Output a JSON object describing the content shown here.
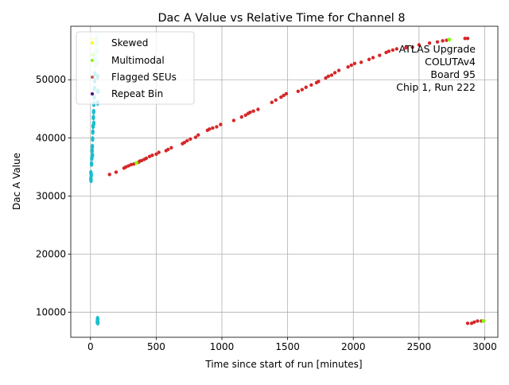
{
  "chart_data": {
    "type": "scatter",
    "title": "Dac A Value vs Relative Time for Channel 8",
    "xlabel": "Time since start of run [minutes]",
    "ylabel": "Dac A Value",
    "xlim": [
      -150,
      3100
    ],
    "ylim": [
      5700,
      59200
    ],
    "xticks": [
      0,
      500,
      1000,
      1500,
      2000,
      2500,
      3000
    ],
    "yticks": [
      10000,
      20000,
      30000,
      40000,
      50000
    ],
    "grid": true,
    "legend_position": "top-left",
    "annotation": [
      "ATLAS Upgrade",
      "COLUTAv4",
      "Board 95",
      "Chip 1, Run 222"
    ],
    "colors": {
      "normal": "#d62728",
      "burst": "#17becf",
      "burst_light": "#aee8f0",
      "skewed": "#ffff00",
      "multimodal": "#7fff00",
      "flagged": "#cd5c5c",
      "repeat": "#4b0082"
    },
    "series": [
      {
        "name": "Skewed",
        "points": [
          [
            15,
            57000
          ]
        ]
      },
      {
        "name": "Multimodal",
        "points": [
          [
            18,
            54300
          ],
          [
            350,
            35700
          ],
          [
            2730,
            56900
          ],
          [
            2990,
            8500
          ]
        ]
      },
      {
        "name": "Flagged SEUs",
        "points": [
          [
            145,
            33700
          ],
          [
            195,
            34100
          ],
          [
            255,
            34800
          ],
          [
            270,
            35000
          ],
          [
            290,
            35200
          ],
          [
            310,
            35400
          ],
          [
            330,
            35500
          ],
          [
            365,
            35800
          ],
          [
            375,
            36000
          ],
          [
            390,
            36100
          ],
          [
            410,
            36300
          ],
          [
            425,
            36500
          ],
          [
            450,
            36800
          ],
          [
            470,
            37000
          ],
          [
            500,
            37200
          ],
          [
            520,
            37500
          ],
          [
            575,
            37800
          ],
          [
            590,
            38000
          ],
          [
            615,
            38300
          ],
          [
            700,
            39000
          ],
          [
            715,
            39200
          ],
          [
            735,
            39500
          ],
          [
            760,
            39800
          ],
          [
            800,
            40100
          ],
          [
            820,
            40500
          ],
          [
            890,
            41300
          ],
          [
            905,
            41500
          ],
          [
            930,
            41700
          ],
          [
            960,
            41900
          ],
          [
            990,
            42300
          ],
          [
            1090,
            43000
          ],
          [
            1150,
            43600
          ],
          [
            1180,
            43900
          ],
          [
            1200,
            44200
          ],
          [
            1215,
            44400
          ],
          [
            1240,
            44600
          ],
          [
            1275,
            44900
          ],
          [
            1380,
            46100
          ],
          [
            1410,
            46500
          ],
          [
            1450,
            47000
          ],
          [
            1470,
            47300
          ],
          [
            1490,
            47600
          ],
          [
            1580,
            48000
          ],
          [
            1610,
            48300
          ],
          [
            1640,
            48700
          ],
          [
            1680,
            49100
          ],
          [
            1720,
            49500
          ],
          [
            1735,
            49700
          ],
          [
            1790,
            50300
          ],
          [
            1810,
            50600
          ],
          [
            1835,
            50800
          ],
          [
            1860,
            51200
          ],
          [
            1890,
            51600
          ],
          [
            1960,
            52200
          ],
          [
            1985,
            52500
          ],
          [
            2010,
            52800
          ],
          [
            2060,
            53000
          ],
          [
            2120,
            53500
          ],
          [
            2150,
            53800
          ],
          [
            2200,
            54200
          ],
          [
            2250,
            54700
          ],
          [
            2270,
            54900
          ],
          [
            2300,
            55100
          ],
          [
            2330,
            55300
          ],
          [
            2400,
            55500
          ],
          [
            2450,
            55600
          ],
          [
            2500,
            56000
          ],
          [
            2580,
            56300
          ],
          [
            2640,
            56500
          ],
          [
            2680,
            56700
          ],
          [
            2710,
            56800
          ],
          [
            2850,
            57100
          ],
          [
            2870,
            57100
          ],
          [
            2870,
            8100
          ],
          [
            2900,
            8100
          ],
          [
            2920,
            8300
          ],
          [
            2945,
            8500
          ],
          [
            2975,
            8500
          ]
        ]
      },
      {
        "name": "Repeat Bin",
        "points": []
      }
    ],
    "burst_points": [
      [
        3,
        34000
      ],
      [
        3,
        33000
      ],
      [
        4,
        32700
      ],
      [
        6,
        33600
      ],
      [
        8,
        35500
      ],
      [
        10,
        36500
      ],
      [
        12,
        37800
      ],
      [
        14,
        38500
      ],
      [
        16,
        39800
      ],
      [
        18,
        41000
      ],
      [
        20,
        42000
      ],
      [
        22,
        43500
      ],
      [
        24,
        44500
      ],
      [
        26,
        45800
      ],
      [
        28,
        47000
      ],
      [
        30,
        48500
      ],
      [
        32,
        49800
      ],
      [
        34,
        51000
      ],
      [
        36,
        52500
      ],
      [
        38,
        53800
      ],
      [
        40,
        55000
      ],
      [
        42,
        56200
      ],
      [
        44,
        57000
      ],
      [
        46,
        57200
      ],
      [
        48,
        56500
      ],
      [
        50,
        55000
      ],
      [
        52,
        53000
      ],
      [
        54,
        50500
      ],
      [
        56,
        48000
      ],
      [
        55,
        46000
      ],
      [
        25,
        42500
      ],
      [
        15,
        37000
      ],
      [
        52,
        8300
      ],
      [
        53,
        8500
      ],
      [
        55,
        8700
      ],
      [
        54,
        8900
      ],
      [
        56,
        8200
      ]
    ]
  }
}
